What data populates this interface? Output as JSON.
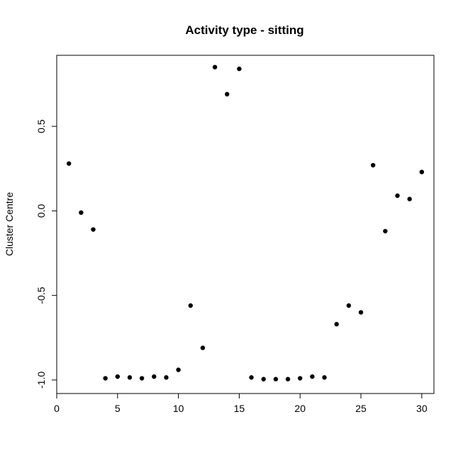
{
  "chart_data": {
    "type": "scatter",
    "title": "Activity type - sitting",
    "xlabel": "",
    "ylabel": "Cluster Centre",
    "xlim": [
      0,
      31
    ],
    "ylim": [
      -1.08,
      0.92
    ],
    "xticks": [
      0,
      5,
      10,
      15,
      20,
      25,
      30
    ],
    "yticks": [
      -1.0,
      -0.5,
      0.0,
      0.5
    ],
    "ytick_labels": [
      "-1.0",
      "-0.5",
      "0.0",
      "0.5"
    ],
    "grid": false,
    "legend": "none",
    "marker_color": "#000000",
    "x": [
      1,
      2,
      3,
      4,
      5,
      6,
      7,
      8,
      9,
      10,
      11,
      12,
      13,
      14,
      15,
      16,
      17,
      18,
      19,
      20,
      21,
      22,
      23,
      24,
      25,
      26,
      27,
      28,
      29,
      30
    ],
    "y": [
      0.28,
      -0.01,
      -0.11,
      -0.99,
      -0.98,
      -0.985,
      -0.99,
      -0.98,
      -0.985,
      -0.94,
      -0.56,
      -0.81,
      0.85,
      0.69,
      0.84,
      -0.985,
      -0.995,
      -0.995,
      -0.995,
      -0.99,
      -0.98,
      -0.985,
      -0.67,
      -0.56,
      -0.6,
      0.27,
      -0.12,
      0.09,
      0.07,
      0.23
    ]
  }
}
